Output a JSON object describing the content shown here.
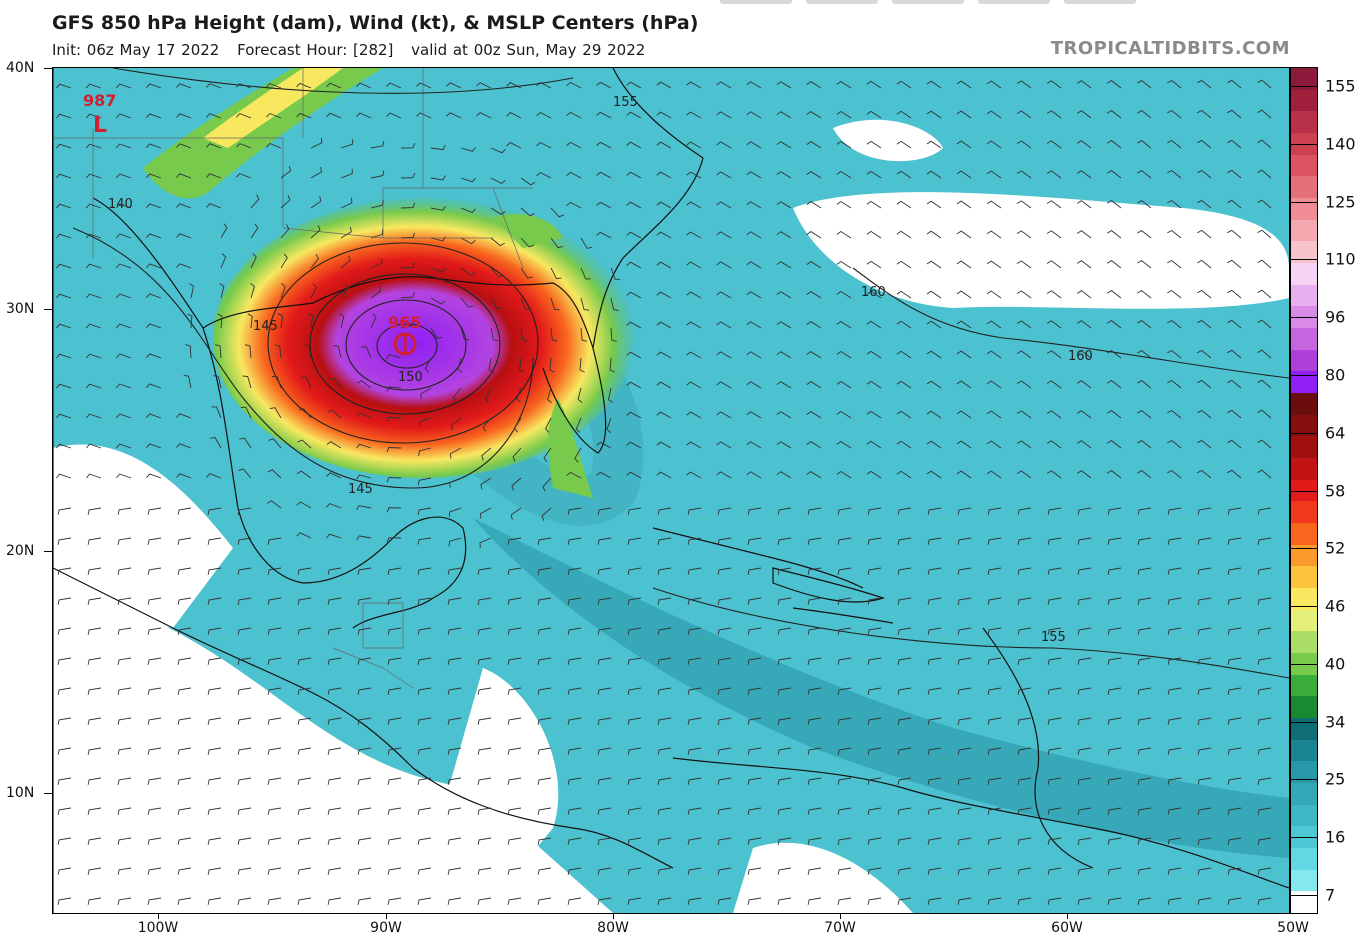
{
  "title": "GFS 850 hPa Height (dam), Wind (kt), & MSLP Centers (hPa)",
  "subtitle": {
    "init": "Init: 06z May 17 2022",
    "forecast_hour": "Forecast Hour: [282]",
    "valid": "valid at 00z Sun, May 29 2022"
  },
  "brand": "TROPICALTIDBITS.COM",
  "latitude_labels": [
    "40N",
    "30N",
    "20N",
    "10N"
  ],
  "longitude_labels": [
    "100W",
    "90W",
    "80W",
    "70W",
    "60W",
    "50W"
  ],
  "colorbar": {
    "labels": [
      "155",
      "140",
      "125",
      "110",
      "96",
      "80",
      "64",
      "58",
      "52",
      "46",
      "40",
      "34",
      "25",
      "16",
      "7"
    ],
    "colors": [
      "#8c1a3a",
      "#a0203c",
      "#b8304a",
      "#cc4050",
      "#dc5462",
      "#e6707a",
      "#ef8c95",
      "#f4a8b0",
      "#f8c4cb",
      "#f5d3f4",
      "#e8b0ee",
      "#d98ae6",
      "#c565e0",
      "#ae3fd8",
      "#8f1ff2",
      "#6b0d0d",
      "#850e0e",
      "#a01010",
      "#c21414",
      "#e21a1a",
      "#f2381c",
      "#f8661e",
      "#fb9a2a",
      "#fbc43a",
      "#f8e860",
      "#e4f07a",
      "#aade66",
      "#78ca4c",
      "#3aac3c",
      "#1a8a32",
      "#0e6e74",
      "#1a8494",
      "#2898a8",
      "#34a8b6",
      "#3fb8c6",
      "#4cc8d4",
      "#62d8e2",
      "#84e8ee",
      "#ffffff"
    ]
  },
  "map_labels": {
    "high_pressure": "987",
    "high_symbol": "L",
    "low_pressure": "965",
    "contours": [
      "155",
      "140",
      "145",
      "145",
      "160",
      "160",
      "155",
      "150"
    ]
  }
}
